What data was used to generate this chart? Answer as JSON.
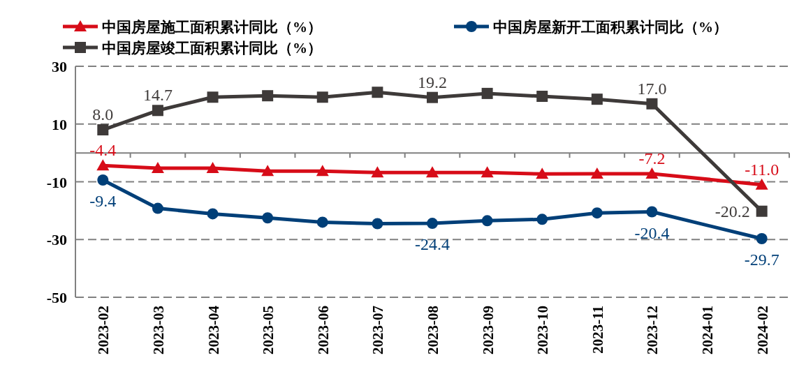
{
  "chart_data": {
    "type": "line",
    "categories": [
      "2023-02",
      "2023-03",
      "2023-04",
      "2023-05",
      "2023-06",
      "2023-07",
      "2023-08",
      "2023-09",
      "2023-10",
      "2023-11",
      "2023-12",
      "2024-01",
      "2024-02"
    ],
    "series": [
      {
        "name": "中国房屋施工面积累计同比（%）",
        "color": "#d70c18",
        "marker": "triangle",
        "values": [
          -4.4,
          -5.3,
          -5.3,
          -6.3,
          -6.3,
          -6.8,
          -6.8,
          -6.8,
          -7.3,
          -7.2,
          -7.2,
          null,
          -11.0
        ],
        "value_labels": [
          "-4.4",
          null,
          null,
          null,
          null,
          null,
          null,
          null,
          null,
          null,
          "-7.2",
          null,
          "-11.0"
        ]
      },
      {
        "name": "中国房屋新开工面积累计同比（%）",
        "color": "#003f78",
        "marker": "circle",
        "values": [
          -9.4,
          -19.2,
          -21.1,
          -22.5,
          -24.0,
          -24.5,
          -24.4,
          -23.5,
          -23.0,
          -20.8,
          -20.4,
          null,
          -29.7
        ],
        "value_labels": [
          "-9.4",
          null,
          null,
          null,
          null,
          null,
          "-24.4",
          null,
          null,
          null,
          "-20.4",
          null,
          "-29.7"
        ]
      },
      {
        "name": "中国房屋竣工面积累计同比（%）",
        "color": "#3e3a39",
        "marker": "square",
        "values": [
          8.0,
          14.7,
          19.3,
          19.8,
          19.3,
          21.0,
          19.2,
          20.6,
          19.6,
          18.6,
          17.0,
          null,
          -20.2
        ],
        "value_labels": [
          "8.0",
          "14.7",
          null,
          null,
          null,
          null,
          "19.2",
          null,
          null,
          null,
          "17.0",
          null,
          "-20.2"
        ]
      }
    ],
    "ylim": [
      -50,
      30
    ],
    "yticks": [
      -50,
      -30,
      -10,
      10,
      30
    ],
    "grid": "y",
    "legend": "top"
  }
}
